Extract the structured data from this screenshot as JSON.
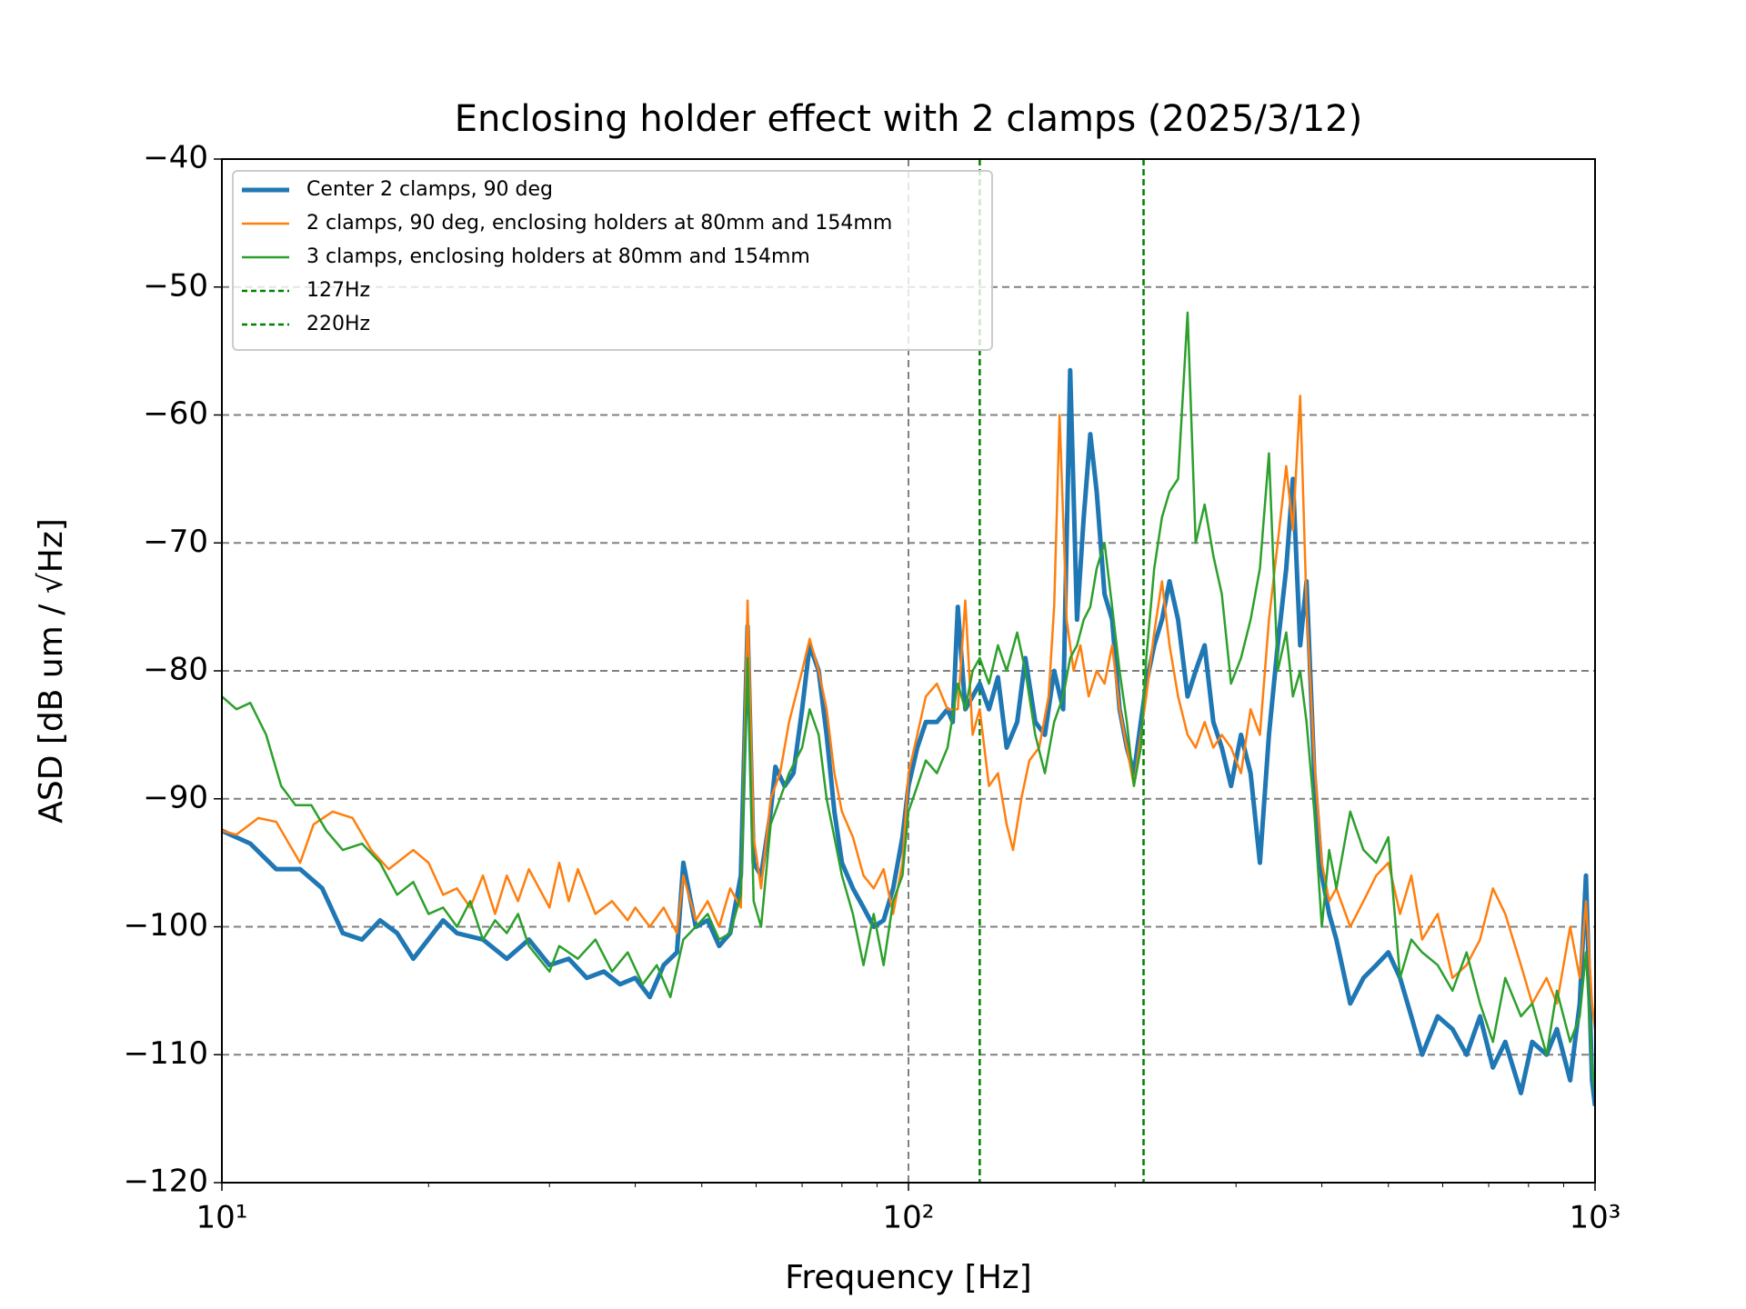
{
  "chart_data": {
    "type": "line",
    "title": "Enclosing holder effect with 2 clamps (2025/3/12)",
    "xlabel": "Frequency [Hz]",
    "ylabel": "ASD [dB um / √Hz]",
    "xscale": "log",
    "xlim": [
      10,
      1000
    ],
    "ylim": [
      -120,
      -40
    ],
    "xticks": [
      {
        "value": 10,
        "label": "10¹"
      },
      {
        "value": 100,
        "label": "10²"
      },
      {
        "value": 1000,
        "label": "10³"
      }
    ],
    "yticks": [
      {
        "value": -120,
        "label": "−120"
      },
      {
        "value": -110,
        "label": "−110"
      },
      {
        "value": -100,
        "label": "−100"
      },
      {
        "value": -90,
        "label": "−90"
      },
      {
        "value": -80,
        "label": "−80"
      },
      {
        "value": -70,
        "label": "−70"
      },
      {
        "value": -60,
        "label": "−60"
      },
      {
        "value": -50,
        "label": "−50"
      },
      {
        "value": -40,
        "label": "−40"
      }
    ],
    "grid": true,
    "legend": "upper left",
    "series": [
      {
        "name": "Center 2 clamps, 90 deg",
        "color": "#1f77b4",
        "linewidth": 5,
        "x": [
          10,
          11,
          12,
          13,
          14,
          15,
          16,
          17,
          18,
          19,
          21,
          22,
          24,
          26,
          28,
          30,
          32,
          34,
          36,
          38,
          40,
          42,
          44,
          46,
          47,
          49,
          51,
          53,
          55,
          57,
          58.3,
          59.5,
          61,
          63,
          64,
          66,
          68,
          70,
          71.8,
          74,
          76,
          78,
          80,
          83,
          86,
          89,
          92,
          95,
          98,
          100,
          103,
          106,
          110,
          114,
          116,
          118,
          121,
          124,
          127,
          131,
          135,
          139,
          144,
          148,
          153,
          158,
          163,
          168,
          172,
          176,
          180,
          184,
          188,
          193,
          198,
          203,
          208,
          213,
          218,
          222,
          228,
          234,
          240,
          247,
          255,
          262,
          270,
          278,
          286,
          295,
          305,
          315,
          325,
          335,
          345,
          355,
          363,
          372,
          380,
          390,
          400,
          410,
          420,
          440,
          460,
          480,
          500,
          520,
          540,
          560,
          590,
          620,
          650,
          680,
          710,
          740,
          780,
          810,
          850,
          880,
          920,
          950,
          970,
          990,
          1000
        ],
        "values": [
          -92.5,
          -93.5,
          -95.5,
          -95.5,
          -97,
          -100.5,
          -101,
          -99.5,
          -100.5,
          -102.5,
          -99.5,
          -100.5,
          -101,
          -102.5,
          -101,
          -103,
          -102.5,
          -104,
          -103.5,
          -104.5,
          -104,
          -105.5,
          -103,
          -102,
          -95,
          -100,
          -99.5,
          -101.5,
          -100.5,
          -96,
          -76.5,
          -95,
          -96,
          -91,
          -87.5,
          -89,
          -88,
          -83,
          -78,
          -80,
          -85,
          -91,
          -95,
          -97,
          -98.5,
          -100,
          -99.5,
          -97,
          -93,
          -89,
          -86,
          -84,
          -84,
          -83,
          -84,
          -75,
          -83,
          -82,
          -81,
          -83,
          -80.5,
          -86,
          -84,
          -79,
          -84,
          -85,
          -80,
          -83,
          -56.5,
          -76,
          -68,
          -61.5,
          -66,
          -74,
          -76,
          -83,
          -86,
          -88,
          -84,
          -81,
          -78,
          -76,
          -73,
          -76,
          -82,
          -80,
          -78,
          -84,
          -86,
          -89,
          -85,
          -88,
          -95,
          -85,
          -78,
          -72,
          -65,
          -78,
          -73,
          -88,
          -96,
          -99,
          -101,
          -106,
          -104,
          -103,
          -102,
          -104,
          -107,
          -110,
          -107,
          -108,
          -110,
          -107,
          -111,
          -109,
          -113,
          -109,
          -110,
          -108,
          -112,
          -106,
          -96,
          -112,
          -114
        ]
      },
      {
        "name": "2 clamps, 90 deg, enclosing holders at 80mm and 154mm",
        "color": "#ff7f0e",
        "linewidth": 2.5,
        "x": [
          10,
          10.5,
          11.3,
          12,
          13,
          13.6,
          14.5,
          15.5,
          16.5,
          17.5,
          19,
          20,
          21,
          22,
          23,
          24,
          25,
          26,
          27,
          28,
          30,
          31,
          32,
          33,
          35,
          37,
          39,
          40,
          42,
          44,
          46,
          47,
          49,
          51,
          53,
          55,
          57,
          58.3,
          59.5,
          61,
          63,
          65,
          67,
          70,
          71.8,
          74,
          76,
          78,
          80,
          83,
          86,
          89,
          92,
          95,
          98,
          100,
          103,
          106,
          110,
          114,
          118,
          121,
          124,
          127,
          131,
          135,
          139,
          142,
          146,
          150,
          155,
          160,
          163,
          166,
          170,
          174,
          178,
          183,
          188,
          193,
          198,
          203,
          208,
          213,
          218,
          222,
          228,
          234,
          240,
          247,
          255,
          262,
          270,
          278,
          286,
          295,
          305,
          315,
          325,
          335,
          345,
          355,
          363,
          372,
          380,
          390,
          400,
          410,
          420,
          440,
          460,
          480,
          500,
          520,
          540,
          560,
          590,
          620,
          650,
          680,
          710,
          740,
          780,
          810,
          850,
          880,
          920,
          950,
          970,
          990,
          1000
        ],
        "values": [
          -92.5,
          -92.8,
          -91.5,
          -91.8,
          -95,
          -92,
          -91,
          -91.5,
          -94,
          -95.5,
          -94,
          -95,
          -97.5,
          -97,
          -98.5,
          -96,
          -99,
          -96,
          -98,
          -95.5,
          -98.5,
          -95,
          -98,
          -95.5,
          -99,
          -98,
          -99.5,
          -98.5,
          -100,
          -98.5,
          -100.5,
          -96,
          -99.5,
          -98,
          -100,
          -97,
          -98.5,
          -74.5,
          -93,
          -97,
          -90,
          -88,
          -84,
          -80,
          -77.5,
          -80,
          -83,
          -88,
          -91,
          -93,
          -96,
          -97,
          -95.5,
          -99,
          -95,
          -88,
          -85,
          -82,
          -81,
          -83,
          -83,
          -74.5,
          -85,
          -83,
          -89,
          -88,
          -92,
          -94,
          -90,
          -87,
          -86,
          -82,
          -75,
          -60,
          -76,
          -80,
          -78,
          -82,
          -80,
          -81,
          -78,
          -83,
          -86,
          -89,
          -85,
          -82,
          -77,
          -73,
          -78,
          -82,
          -85,
          -86,
          -84,
          -86,
          -85,
          -86,
          -88,
          -83,
          -85,
          -76,
          -70,
          -64,
          -69,
          -58.5,
          -75,
          -87,
          -95,
          -98,
          -97,
          -100,
          -98,
          -96,
          -95,
          -99,
          -96,
          -101,
          -99,
          -104,
          -103,
          -101,
          -97,
          -99,
          -103,
          -106,
          -104,
          -106,
          -100,
          -104,
          -98,
          -106,
          -108
        ]
      },
      {
        "name": "3 clamps, enclosing holders at 80mm and 154mm",
        "color": "#2ca02c",
        "linewidth": 2.5,
        "x": [
          10,
          10.5,
          11,
          11.6,
          12.2,
          12.8,
          13.5,
          14.2,
          15,
          16,
          17,
          18,
          19,
          20,
          21,
          22,
          23,
          24,
          25,
          26,
          27,
          28,
          30,
          31,
          33,
          35,
          37,
          39,
          41,
          43,
          45,
          47,
          49,
          51,
          53,
          55,
          57,
          58.3,
          59.5,
          61,
          63,
          65,
          67,
          70,
          71.8,
          74,
          76,
          78,
          80,
          83,
          86,
          89,
          92,
          95,
          98,
          100,
          103,
          106,
          110,
          114,
          118,
          121,
          124,
          127,
          131,
          135,
          139,
          144,
          148,
          153,
          158,
          163,
          168,
          172,
          176,
          180,
          184,
          188,
          193,
          198,
          203,
          208,
          213,
          218,
          222,
          228,
          234,
          240,
          247,
          255,
          262,
          270,
          278,
          286,
          295,
          305,
          315,
          325,
          335,
          345,
          355,
          363,
          372,
          380,
          390,
          400,
          410,
          420,
          440,
          460,
          480,
          500,
          520,
          540,
          560,
          590,
          620,
          650,
          680,
          710,
          740,
          780,
          810,
          850,
          880,
          920,
          950,
          970,
          990,
          1000
        ],
        "values": [
          -82,
          -83,
          -82.5,
          -85,
          -89,
          -90.5,
          -90.5,
          -92.5,
          -94,
          -93.5,
          -95,
          -97.5,
          -96.5,
          -99,
          -98.5,
          -100,
          -98,
          -101,
          -99.5,
          -100.5,
          -99,
          -101.5,
          -103.5,
          -101.5,
          -102.5,
          -101,
          -103.5,
          -102,
          -104.5,
          -103,
          -105.5,
          -101,
          -100,
          -99,
          -101,
          -100.5,
          -97.5,
          -79,
          -98,
          -100,
          -92,
          -90,
          -88,
          -86,
          -83,
          -85,
          -90,
          -93,
          -96,
          -99,
          -103,
          -99,
          -103,
          -98,
          -96,
          -91,
          -89,
          -87,
          -88,
          -86,
          -81,
          -83,
          -80,
          -79,
          -81,
          -78,
          -80,
          -77,
          -80,
          -85,
          -88,
          -84,
          -82,
          -79,
          -78,
          -76,
          -75,
          -72,
          -70,
          -75,
          -80,
          -84,
          -89,
          -86,
          -79,
          -72,
          -68,
          -66,
          -65,
          -52,
          -70,
          -67,
          -71,
          -74,
          -81,
          -79,
          -76,
          -72,
          -63,
          -80,
          -77,
          -82,
          -80,
          -84,
          -91,
          -100,
          -94,
          -97,
          -91,
          -94,
          -95,
          -93,
          -104,
          -101,
          -102,
          -103,
          -105,
          -102,
          -106,
          -109,
          -104,
          -107,
          -106,
          -110,
          -105,
          -109,
          -107,
          -102,
          -111,
          -113
        ]
      }
    ],
    "vlines": [
      {
        "name": "127Hz",
        "x": 127,
        "color": "#008000"
      },
      {
        "name": "220Hz",
        "x": 220,
        "color": "#008000"
      }
    ]
  }
}
